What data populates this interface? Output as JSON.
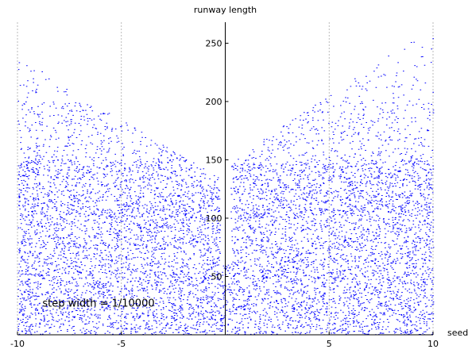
{
  "chart_data": {
    "type": "scatter",
    "title": "runway length",
    "xlabel": "seed",
    "ylabel": "runway length",
    "xlim": [
      -10,
      10
    ],
    "ylim": [
      0,
      268
    ],
    "x_ticks": [
      -10,
      -5,
      5,
      10
    ],
    "y_ticks": [
      50,
      100,
      150,
      200,
      250
    ],
    "x_tick_labels": [
      "-10",
      "-5",
      "5",
      "10"
    ],
    "y_tick_labels": [
      "50",
      "100",
      "150",
      "200",
      "250"
    ],
    "vertical_gridlines": [
      -10,
      -5,
      5,
      10
    ],
    "grid": "dashed vertical lines at x ticks",
    "point_color": "#0000ff",
    "annotation": "step width = 1/10000",
    "series": [
      {
        "marker": "point",
        "density_bands": [
          {
            "y_range": [
              0,
              110
            ],
            "density": "solid"
          },
          {
            "y_range": [
              110,
              150
            ],
            "density": "dense"
          },
          {
            "y_range": [
              150,
              200
            ],
            "density": "moderate"
          },
          {
            "y_range": [
              200,
              265
            ],
            "density": "sparse"
          }
        ],
        "max_y": {
          "left_half": 238,
          "right_half": 265
        },
        "trend": "upper envelope rises with |seed|; right half (seed>0) reaches higher than left half"
      }
    ]
  }
}
